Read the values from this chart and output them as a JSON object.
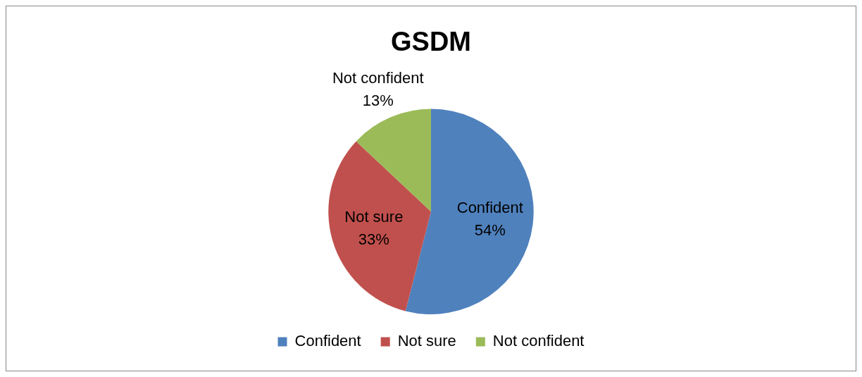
{
  "chart_data": {
    "type": "pie",
    "title": "GSDM",
    "categories": [
      "Confident",
      "Not sure",
      "Not confident"
    ],
    "values": [
      54,
      33,
      13
    ],
    "colors": [
      "#4f81bd",
      "#c0504d",
      "#9bbb59"
    ],
    "value_labels": [
      "54%",
      "33%",
      "13%"
    ],
    "legend": "bottom"
  }
}
